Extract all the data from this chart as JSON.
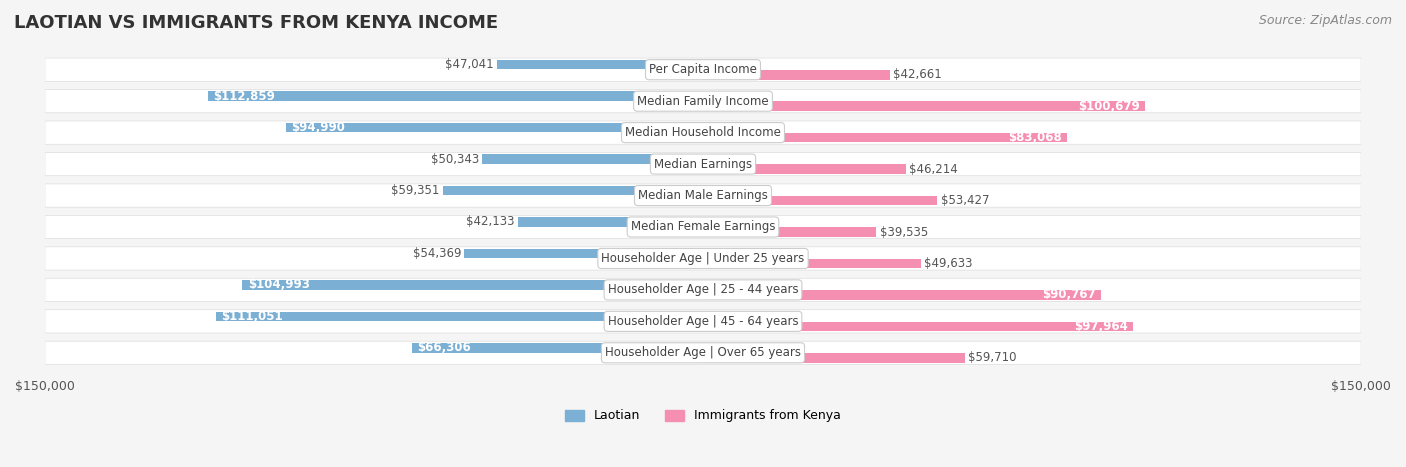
{
  "title": "LAOTIAN VS IMMIGRANTS FROM KENYA INCOME",
  "source": "Source: ZipAtlas.com",
  "categories": [
    "Per Capita Income",
    "Median Family Income",
    "Median Household Income",
    "Median Earnings",
    "Median Male Earnings",
    "Median Female Earnings",
    "Householder Age | Under 25 years",
    "Householder Age | 25 - 44 years",
    "Householder Age | 45 - 64 years",
    "Householder Age | Over 65 years"
  ],
  "laotian_values": [
    47041,
    112859,
    94990,
    50343,
    59351,
    42133,
    54369,
    104993,
    111051,
    66306
  ],
  "kenya_values": [
    42661,
    100679,
    83068,
    46214,
    53427,
    39535,
    49633,
    90767,
    97964,
    59710
  ],
  "laotian_color": "#7bafd4",
  "kenya_color": "#f48fb1",
  "laotian_label_color_threshold": 60000,
  "kenya_label_color_threshold": 60000,
  "max_value": 150000,
  "x_tick_labels": [
    "$150,000",
    "$150,000"
  ],
  "legend_laotian": "Laotian",
  "legend_kenya": "Immigrants from Kenya",
  "background_color": "#f5f5f5",
  "row_bg_color": "#ffffff",
  "label_box_color": "#ffffff",
  "label_box_border": "#cccccc",
  "title_fontsize": 13,
  "source_fontsize": 9,
  "bar_label_fontsize": 8.5,
  "category_fontsize": 8.5
}
